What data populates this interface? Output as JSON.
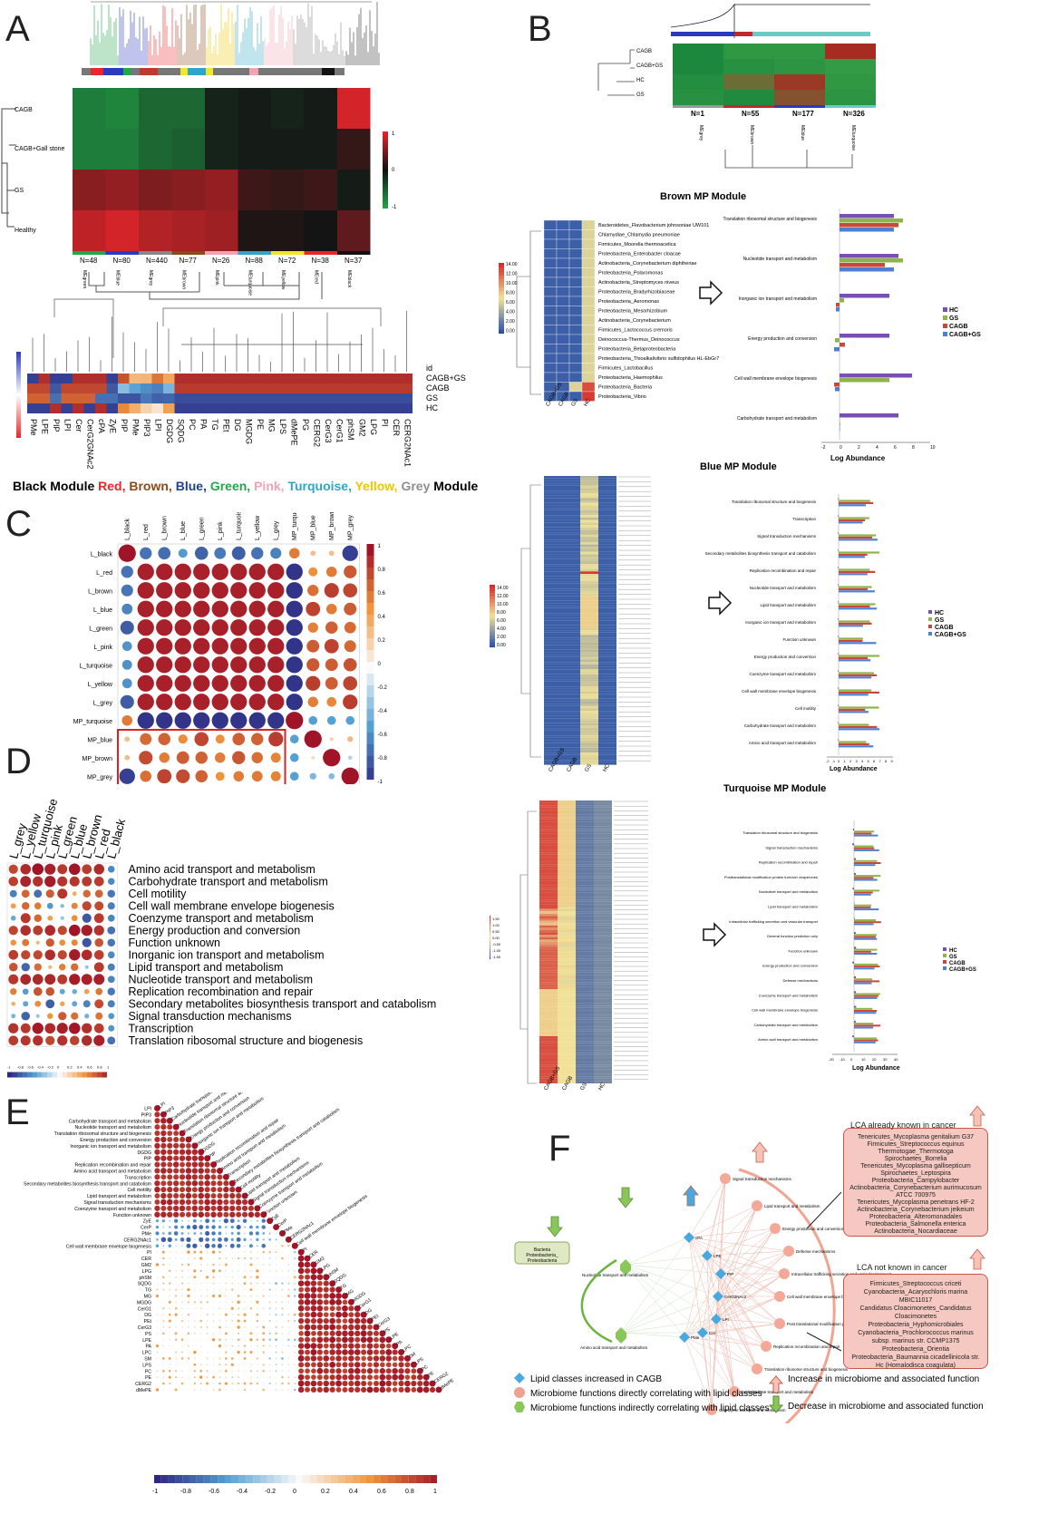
{
  "panels": {
    "A": "A",
    "B": "B",
    "C": "C",
    "D": "D",
    "E": "E",
    "F": "F"
  },
  "panelA": {
    "rows": [
      "CAGB",
      "CAGB+Gall stone",
      "GS",
      "Healthy"
    ],
    "counts": [
      "N=48",
      "N=80",
      "N=440",
      "N=77",
      "N=26",
      "N=88",
      "N=72",
      "N=38",
      "N=37"
    ],
    "modules": [
      "MEgreen",
      "MEblue",
      "MEgrey",
      "MEbrown",
      "MEpink",
      "MEturquoise",
      "MEyellow",
      "MEred",
      "MEblack"
    ],
    "scale": [
      "1",
      "0",
      "-1"
    ],
    "lipid_rows": [
      "CAGB+GS",
      "CAGB",
      "GS",
      "HC"
    ],
    "lipid_left_axis_top": "CAGB+GS",
    "lipids": [
      "PMe",
      "LPE",
      "PIP",
      "LPI",
      "Cer",
      "CerG2GNAc2",
      "cPA",
      "ZyE",
      "PIP",
      "PMe",
      "PIP3",
      "LPI",
      "DGDG",
      "SQDG",
      "PC",
      "PA",
      "TG",
      "PEt",
      "DG",
      "MGDG",
      "PE",
      "MG",
      "LPS",
      "dMePE",
      "PG",
      "CERG2",
      "CerG3",
      "CerG1",
      "phSM",
      "GM2",
      "LPG",
      "PI",
      "CER",
      "CERG2NAc1"
    ],
    "module_line": [
      {
        "text": "Black Module ",
        "color": "#000000"
      },
      {
        "text": "Red, ",
        "color": "#e8262b"
      },
      {
        "text": "Brown, ",
        "color": "#8b4a1c"
      },
      {
        "text": "Blue, ",
        "color": "#1f3f8f"
      },
      {
        "text": "Green, ",
        "color": "#22a64b"
      },
      {
        "text": "Pink, ",
        "color": "#f2a3b3"
      },
      {
        "text": "Turquoise, ",
        "color": "#2fa5c9"
      },
      {
        "text": "Yellow, ",
        "color": "#f2c500"
      },
      {
        "text": "Grey ",
        "color": "#8f8f8f"
      },
      {
        "text": "Module",
        "color": "#000000"
      }
    ]
  },
  "panelB": {
    "rows": [
      "CAGB",
      "CAGB+GS",
      "HC",
      "GS"
    ],
    "counts": [
      "N=1",
      "N=55",
      "N=177",
      "N=326"
    ],
    "modules": [
      "MEgrey",
      "MEbrown",
      "MEblue",
      "MEturquoise"
    ],
    "brown_title": "Brown MP Module",
    "blue_title": "Blue MP Module",
    "turquoise_title": "Turquoise MP Module",
    "brown_taxa": [
      "Bacteroidetes_Flavobacterium johnsoniae UW101",
      "Chlamydiae_Chlamydia pneumoniae",
      "Firmicutes_Moorella thermoacetica",
      "Proteobacteria_Enterobacter cloacae",
      "Actinobacteria_Corynebacterium diphtheriae",
      "Proteobacteria_Polaromonas",
      "Actinobacteria_Streptomyces niveus",
      "Proteobacteria_Bradyrhizobiaceae",
      "Proteobacteria_Aeromonas",
      "Proteobacteria_Mesorhizobium",
      "Actinobacteria_Corynebacterium",
      "Firmicutes_Lactococcus cremoris",
      "Deinococcus-Thermus_Deinococcus",
      "Proteobacteria_Betaproteobacteria",
      "Proteobacteria_Thioalkalivibrio sulfidophilus HL-EbGr7",
      "Firmicutes_Lactobacillus",
      "Proteobacteria_Haemophilus",
      "Proteobacteria_Bacteria",
      "Proteobacteria_Vibrio"
    ],
    "heat_cols": [
      "CAGB+GS",
      "CAGB",
      "GS",
      "HC"
    ],
    "scale_brown": [
      "14.00",
      "12.00",
      "10.00",
      "8.00",
      "6.00",
      "4.00",
      "2.00",
      "0.00"
    ],
    "scale_tq": [
      "1.50",
      "1.00",
      "0.50",
      "0.00",
      "-0.50",
      "-1.00",
      "-1.50"
    ],
    "brown_functions": [
      "Translation ribosomal structure and biogenesis",
      "Nucleotide transport and metabolism",
      "Inorganic ion transport and metabolism",
      "Energy production and conversion",
      "Cell wall membrane envelope biogenesis",
      "Carbohydrate transport and metabolism"
    ],
    "blue_functions": [
      "Translation ribosomal structure and biogenesis",
      "Transcription",
      "Signal transduction mechanisms",
      "Secondary metabolites biosynthesis transport and catabolism",
      "Replication recombination and repair",
      "Nucleotide transport and metabolism",
      "Lipid transport and metabolism",
      "Inorganic ion transport and metabolism",
      "Function unknown",
      "Energy production and conversion",
      "Coenzyme transport and metabolism",
      "Cell wall membrane envelope biogenesis",
      "Cell motility",
      "Carbohydrate transport and metabolism",
      "Amino acid transport and metabolism"
    ],
    "tq_functions": [
      "Translation ribosomal structure and biogenesis",
      "Signal transduction mechanisms",
      "Replication recombination and repair",
      "Posttranslational modification protein turnover chaperones",
      "Nucleotide transport and metabolism",
      "Lipid transport and metabolism",
      "Intracellular trafficking secretion and vesicular transport",
      "General function prediction only",
      "Function unknown",
      "Energy production and conversion",
      "Defense mechanisms",
      "Coenzyme transport and metabolism",
      "Cell wall membrane envelope biogenesis",
      "Carbohydrate transport and metabolism",
      "Amino acid transport and metabolism"
    ],
    "legend": [
      {
        "name": "HC",
        "color": "#7a4fb5"
      },
      {
        "name": "GS",
        "color": "#8fb548"
      },
      {
        "name": "CAGB",
        "color": "#c9473c"
      },
      {
        "name": "CAGB+GS",
        "color": "#4f7fd0"
      }
    ],
    "log_abundance": "Log Abundance",
    "brown_ticks": [
      "-2",
      "0",
      "2",
      "4",
      "6",
      "8",
      "10"
    ],
    "blue_ticks": [
      "-2",
      "-1",
      "0",
      "1",
      "2",
      "3",
      "4",
      "5",
      "6",
      "7",
      "8",
      "9"
    ],
    "tq_ticks": [
      "-20",
      "-10",
      "0",
      "10",
      "20",
      "30",
      "40"
    ]
  },
  "panelC": {
    "labels": [
      "L_black",
      "L_red",
      "L_brown",
      "L_blue",
      "L_green",
      "L_pink",
      "L_turquoise",
      "L_yellow",
      "L_grey",
      "MP_turquoise",
      "MP_blue",
      "MP_brown",
      "MP_grey"
    ],
    "scale": [
      "1",
      "0.8",
      "0.6",
      "0.4",
      "0.2",
      "0",
      "-0.2",
      "-0.4",
      "-0.6",
      "-0.8",
      "-1"
    ]
  },
  "panelD": {
    "cols": [
      "L_grey",
      "L_yellow",
      "L_turquoise",
      "L_pink",
      "L_green",
      "L_blue",
      "L_brown",
      "L_red",
      "L_black"
    ],
    "functions": [
      "Amino acid transport and metabolism",
      "Carbohydrate transport and metabolism",
      "Cell motility",
      "Cell wall membrane envelope biogenesis",
      "Coenzyme transport and metabolism",
      "Energy production and conversion",
      "Function unknown",
      "Inorganic ion transport and metabolism",
      "Lipid transport and metabolism",
      "Nucleotide transport and metabolism",
      "Replication recombination and repair",
      "Secondary metabolites biosynthesis transport and catabolism",
      "Signal transduction mechanisms",
      "Transcription",
      "Translation ribosomal structure and biogenesis"
    ],
    "scale": [
      "-1",
      "-0.8",
      "-0.6",
      "-0.4",
      "-0.2",
      "0",
      "0.2",
      "0.4",
      "0.6",
      "0.8",
      "1"
    ]
  },
  "panelE": {
    "labels": [
      "LPI",
      "PIP3",
      "Carbohydrate transport and metabolism",
      "Nucleotide transport and metabolism",
      "Translation ribosomal structure and biogenesis",
      "Energy production and conversion",
      "Inorganic ion transport and metabolism",
      "DGDG",
      "PIP",
      "Replication recombination and repair",
      "Amino acid transport and metabolism",
      "Transcription",
      "Secondary metabolites biosynthesis transport and catabolism",
      "Cell motility",
      "Lipid transport and metabolism",
      "Signal transduction mechanisms",
      "Coenzyme transport and metabolism",
      "Function unknown",
      "ZyE",
      "CerP",
      "PMe",
      "CERG2NAc1",
      "Cell wall membrane envelope biogenesis",
      "PI",
      "CER",
      "GM2",
      "LPG",
      "phSM",
      "SQDG",
      "TG",
      "MG",
      "MGDG",
      "CerG1",
      "DG",
      "PEt",
      "CerG3",
      "PS",
      "LPE",
      "PA",
      "LPC",
      "SM",
      "LPS",
      "PC",
      "PE",
      "CERG2",
      "dMePE"
    ],
    "scale": [
      "-1",
      "-0.8",
      "-0.6",
      "-0.4",
      "-0.2",
      "0",
      "0.2",
      "0.4",
      "0.6",
      "0.8",
      "1"
    ]
  },
  "panelF": {
    "bacteria_box": "Bacteria\nProteobacteria_\nProteobacteria",
    "nodes_functions": [
      "Signal transduction mechanisms",
      "Lipid transport and metabolism",
      "Energy production and conversion",
      "Defense mechanisms",
      "Intracellular trafficking secretion and vesicular transport",
      "Cell wall membrane envelope biogenesis",
      "Post translational modification protein turnover chaperones",
      "Replication recombination and repair",
      "Translation ribosome structure and biogenesis",
      "Carbohydrate transport and metabolism",
      "Coenzyme transport and metabolism"
    ],
    "node_left_top": "Nucleotide transport and metabolism",
    "node_left_bottom": "Amino acid transport and metabolism",
    "lipid_nodes": [
      "cPA",
      "LPE",
      "PIP",
      "CerG2NAc2",
      "LPI",
      "PMe",
      "Cer"
    ],
    "known_title": "LCA already known in cancer",
    "known": [
      "Tenericutes_Mycoplasma genitalium G37",
      "Firmicutes_Streptococcus equinus",
      "Thermotogae_Thermotoga",
      "Spirochaetes_Borrelia",
      "Tenericutes_Mycoplasma gallisepticum",
      "Spirochaetes_Leptospira",
      "Proteobacteria_Campylobacter",
      "Actinobacteria_Corynebacterium aurimucosum ATCC 700975",
      "Tenericutes_Mycoplasma penetrans HF-2",
      "Actinobacteria_Corynebacterium jeikeium",
      "Proteobacteria_Alteromonadales",
      "Proteobacteria_Salmonella enterica",
      "Actinobacteria_Nocardiaceae"
    ],
    "unknown_title": "LCA not known in cancer",
    "unknown": [
      "Firmicutes_Streptococcus criceti",
      "Cyanobacteria_Acaryochloris marina MBIC11017",
      "Candidatus Cloacimonetes_Candidatus Cloacimonetes",
      "Proteobacteria_Hyphomicrobiales",
      "Cyanobacteria_Prochlorococcus marinus subsp. marinus str. CCMP1375",
      "Proteobacteria_Orientia",
      "Proteobacteria_Baumannia cicadellinicola str. Hc (Homalodisca coagulata)"
    ],
    "legend": [
      {
        "text": "Lipid classes increased in CAGB",
        "shape": "diamond",
        "color": "#4aa8e0"
      },
      {
        "text": "Microbiome functions directly correlating with lipid classes",
        "shape": "circle",
        "color": "#f0a191"
      },
      {
        "text": "Microbiome functions indirectly correlating with lipid classes",
        "shape": "hex",
        "color": "#8ac75a"
      }
    ],
    "increase": "Increase in microbiome and associated function",
    "decrease": "Decrease in microbiome and associated function"
  }
}
